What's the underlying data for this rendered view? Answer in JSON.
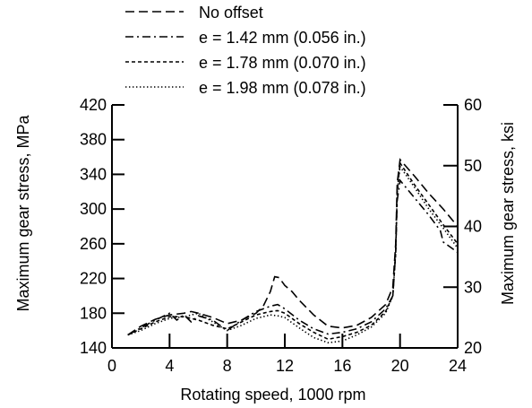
{
  "chart_data": {
    "type": "line",
    "xlabel": "Rotating speed, 1000 rpm",
    "ylabel": "Maximum gear stress, MPa",
    "y2label": "Maximum gear stress, ksi",
    "xlim": [
      0,
      24
    ],
    "ylim": [
      140,
      420
    ],
    "y2lim": [
      20,
      60
    ],
    "x_ticks": [
      "0",
      "4",
      "8",
      "12",
      "16",
      "20",
      "24"
    ],
    "y_ticks": [
      "140",
      "180",
      "220",
      "260",
      "300",
      "340",
      "380",
      "420"
    ],
    "y2_ticks": [
      "20",
      "30",
      "40",
      "50",
      "60"
    ],
    "legend_position": "top",
    "series": [
      {
        "name": "No offset",
        "dash": "long-dash",
        "x": [
          1.1,
          2,
          3,
          4,
          5,
          5.5,
          6,
          7,
          8,
          9,
          10,
          10.5,
          11,
          11.3,
          11.6,
          12,
          12.5,
          13,
          14,
          15,
          16,
          17,
          18,
          19,
          19.5,
          19.7,
          19.8,
          20,
          21,
          22,
          23,
          24
        ],
        "y": [
          155,
          165,
          173,
          178,
          180,
          182,
          180,
          175,
          168,
          172,
          180,
          188,
          205,
          222,
          221,
          212,
          205,
          195,
          178,
          165,
          163,
          166,
          175,
          190,
          210,
          260,
          330,
          357,
          338,
          318,
          300,
          280
        ]
      },
      {
        "name": "e = 1.42 mm (0.056 in.)",
        "dash": "dash-dot",
        "x": [
          1.1,
          2,
          3,
          4,
          4.5,
          5,
          5.5,
          6,
          7,
          8,
          9,
          10,
          11,
          11.5,
          12,
          13,
          14,
          15,
          16,
          17,
          18,
          19,
          19.5,
          19.7,
          19.8,
          20,
          21,
          22,
          22.8,
          23,
          24
        ],
        "y": [
          155,
          163,
          172,
          180,
          172,
          178,
          170,
          177,
          172,
          160,
          172,
          182,
          188,
          190,
          185,
          172,
          162,
          156,
          158,
          162,
          170,
          185,
          200,
          250,
          310,
          333,
          313,
          293,
          275,
          262,
          250
        ]
      },
      {
        "name": "e = 1.78 mm (0.070 in.)",
        "dash": "short-dash",
        "x": [
          1.1,
          2,
          3,
          4,
          5,
          6,
          7,
          8,
          9,
          10,
          11,
          11.5,
          12,
          13,
          14,
          15,
          16,
          17,
          18,
          19,
          19.5,
          19.7,
          19.8,
          20,
          21,
          22,
          23,
          24
        ],
        "y": [
          155,
          162,
          170,
          176,
          176,
          172,
          166,
          162,
          170,
          178,
          182,
          183,
          180,
          168,
          158,
          150,
          153,
          158,
          166,
          182,
          200,
          250,
          320,
          353,
          328,
          305,
          282,
          260
        ]
      },
      {
        "name": "e = 1.98 mm (0.078 in.)",
        "dash": "dotted",
        "x": [
          1.1,
          2,
          3,
          4,
          5,
          6,
          7,
          8,
          9,
          10,
          11,
          11.5,
          12,
          13,
          14,
          15,
          16,
          17,
          18,
          19,
          19.5,
          19.7,
          19.8,
          20,
          21,
          22,
          23,
          24
        ],
        "y": [
          155,
          160,
          168,
          174,
          176,
          180,
          170,
          160,
          166,
          174,
          178,
          177,
          175,
          163,
          152,
          146,
          148,
          155,
          164,
          180,
          200,
          250,
          320,
          349,
          325,
          300,
          278,
          255
        ]
      }
    ]
  }
}
